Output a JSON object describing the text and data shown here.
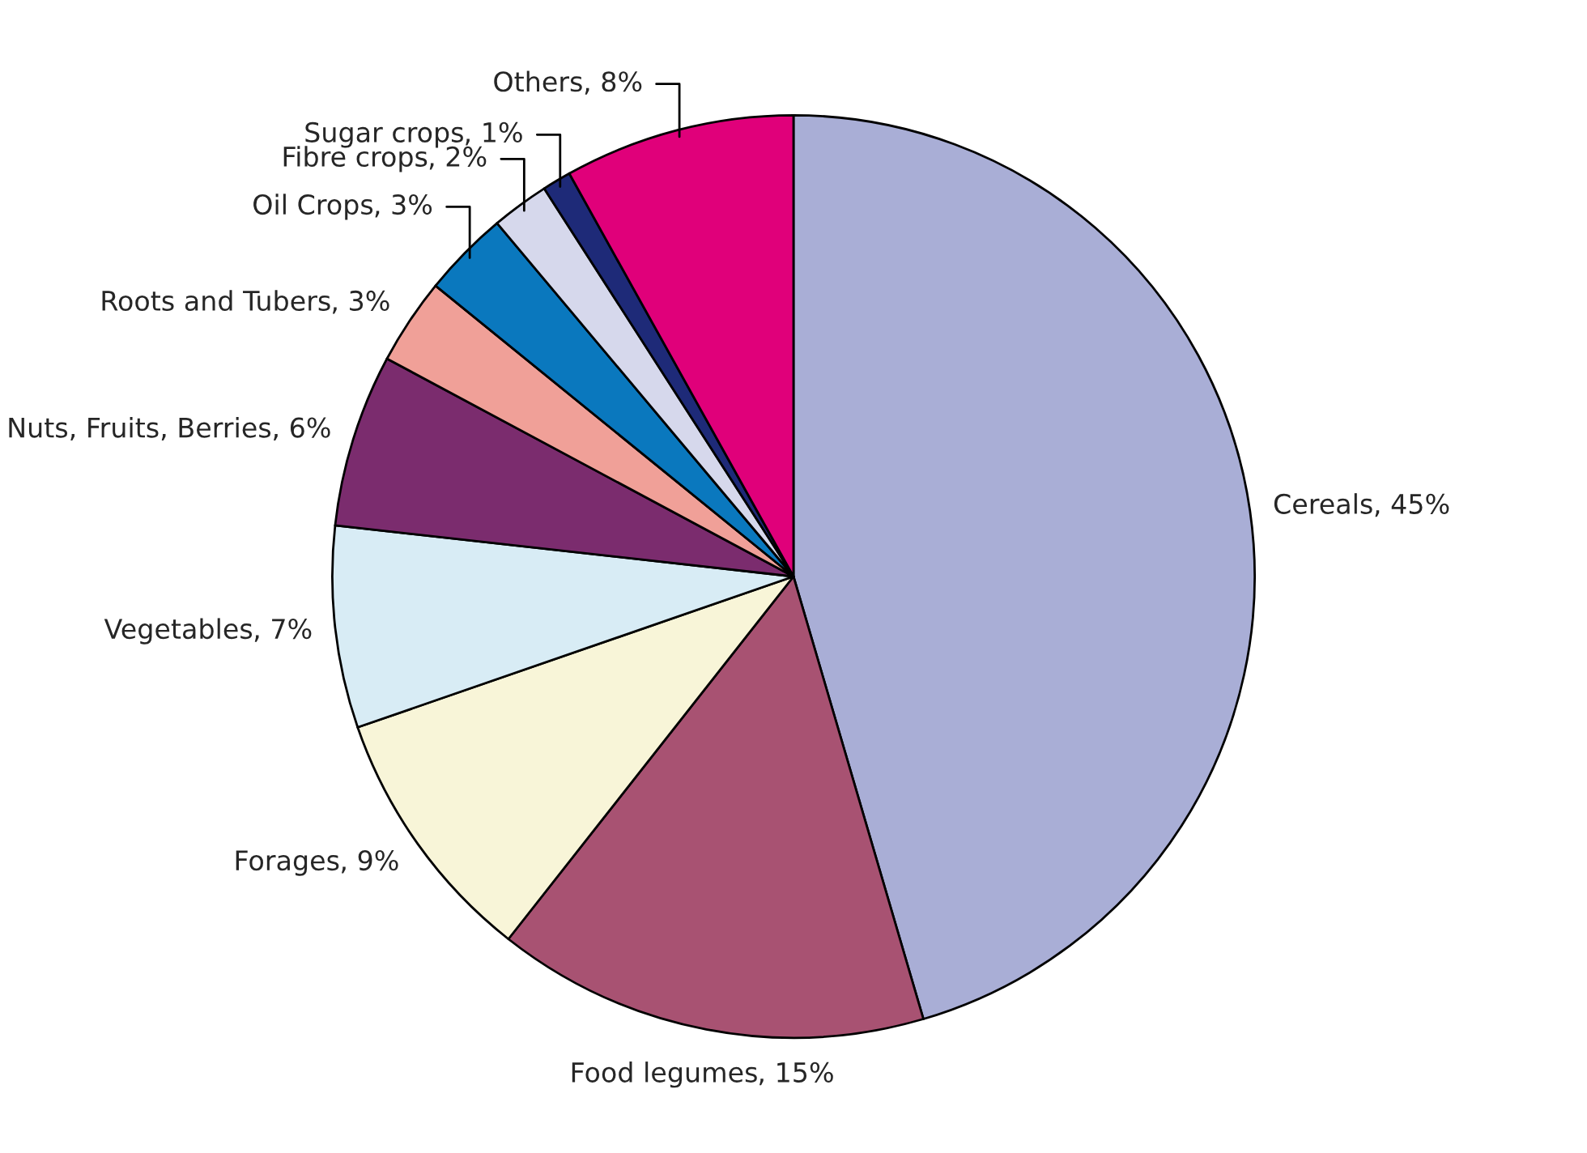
{
  "chart_data": {
    "type": "pie",
    "categories": [
      "Cereals",
      "Food legumes",
      "Forages",
      "Vegetables",
      "Nuts, Fruits, Berries",
      "Roots and Tubers",
      "Oil Crops",
      "Fibre crops",
      "Sugar crops",
      "Others"
    ],
    "values": [
      45,
      15,
      9,
      7,
      6,
      3,
      3,
      2,
      1,
      8
    ],
    "colors": [
      "#a9aed6",
      "#a85272",
      "#f8f5d8",
      "#d8ecf5",
      "#7b2c6e",
      "#f0a098",
      "#0a78be",
      "#d6d8ec",
      "#1e2a78",
      "#e0007a"
    ],
    "value_labels": [
      ", 45%",
      ", 15%",
      ", 9%",
      ", 7%",
      ", 6%",
      ", 3%",
      ", 3%",
      ", 2%",
      ", 1%",
      ", 8%"
    ]
  }
}
